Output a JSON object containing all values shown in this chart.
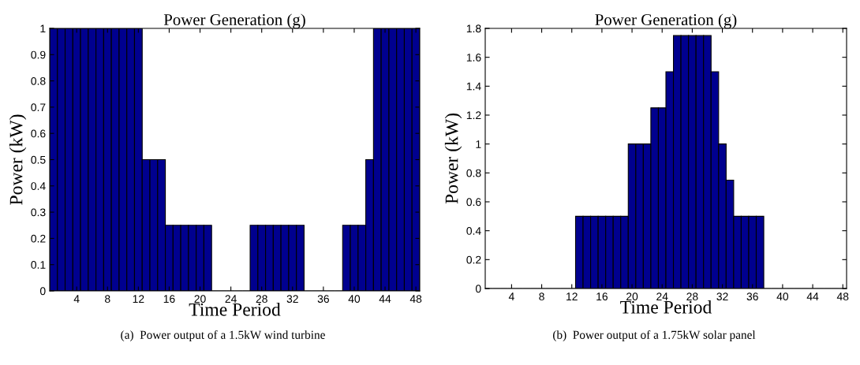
{
  "chart_data": [
    {
      "type": "bar",
      "title": "Power Generation (g)",
      "xlabel": "Time Period",
      "ylabel": "Power (kW)",
      "x": [
        1,
        2,
        3,
        4,
        5,
        6,
        7,
        8,
        9,
        10,
        11,
        12,
        13,
        14,
        15,
        16,
        17,
        18,
        19,
        20,
        21,
        22,
        23,
        24,
        25,
        26,
        27,
        28,
        29,
        30,
        31,
        32,
        33,
        34,
        35,
        36,
        37,
        38,
        39,
        40,
        41,
        42,
        43,
        44,
        45,
        46,
        47,
        48
      ],
      "values": [
        1,
        1,
        1,
        1,
        1,
        1,
        1,
        1,
        1,
        1,
        1,
        1,
        0.5,
        0.5,
        0.5,
        0.25,
        0.25,
        0.25,
        0.25,
        0.25,
        0.25,
        0,
        0,
        0,
        0,
        0,
        0.25,
        0.25,
        0.25,
        0.25,
        0.25,
        0.25,
        0.25,
        0,
        0,
        0,
        0,
        0,
        0.25,
        0.25,
        0.25,
        0.5,
        1,
        1,
        1,
        1,
        1,
        1
      ],
      "color": "#00008f",
      "xlim": [
        0.5,
        48.5
      ],
      "xticks": [
        4,
        8,
        12,
        16,
        20,
        24,
        28,
        32,
        36,
        40,
        44,
        48
      ],
      "ylim": [
        0,
        1
      ],
      "yticks": [
        0,
        0.1,
        0.2,
        0.3,
        0.4,
        0.5,
        0.6,
        0.7,
        0.8,
        0.9,
        1
      ],
      "grid": false,
      "annotations": [
        "(a)  Power output of a 1.5kW wind turbine"
      ]
    },
    {
      "type": "bar",
      "title": "Power Generation (g)",
      "xlabel": "Time Period",
      "ylabel": "Power (kW)",
      "x": [
        1,
        2,
        3,
        4,
        5,
        6,
        7,
        8,
        9,
        10,
        11,
        12,
        13,
        14,
        15,
        16,
        17,
        18,
        19,
        20,
        21,
        22,
        23,
        24,
        25,
        26,
        27,
        28,
        29,
        30,
        31,
        32,
        33,
        34,
        35,
        36,
        37,
        38,
        39,
        40,
        41,
        42,
        43,
        44,
        45,
        46,
        47,
        48
      ],
      "values": [
        0,
        0,
        0,
        0,
        0,
        0,
        0,
        0,
        0,
        0,
        0,
        0,
        0.5,
        0.5,
        0.5,
        0.5,
        0.5,
        0.5,
        0.5,
        1,
        1,
        1,
        1.25,
        1.25,
        1.5,
        1.75,
        1.75,
        1.75,
        1.75,
        1.75,
        1.5,
        1,
        0.75,
        0.5,
        0.5,
        0.5,
        0.5,
        0,
        0,
        0,
        0,
        0,
        0,
        0,
        0,
        0,
        0,
        0
      ],
      "color": "#00008f",
      "xlim": [
        0.5,
        48.5
      ],
      "xticks": [
        4,
        8,
        12,
        16,
        20,
        24,
        28,
        32,
        36,
        40,
        44,
        48
      ],
      "ylim": [
        0,
        1.8
      ],
      "yticks": [
        0,
        0.2,
        0.4,
        0.6,
        0.8,
        1,
        1.2,
        1.4,
        1.6,
        1.8
      ],
      "grid": false,
      "annotations": [
        "(b)  Power output of a 1.75kW solar panel"
      ]
    }
  ]
}
